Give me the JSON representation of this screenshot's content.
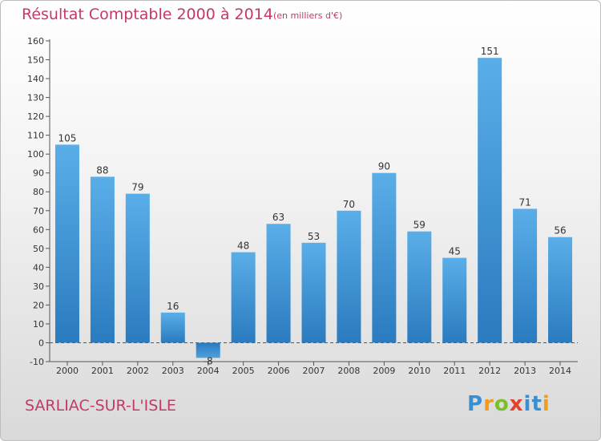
{
  "header": {
    "title": "Résultat Comptable 2000 à 2014",
    "subtitle": "(en milliers d'€)"
  },
  "footer": {
    "location": "SARLIAC-SUR-L'ISLE",
    "logo_text": "Proxiti"
  },
  "colors": {
    "accent_text": "#c5386b",
    "bar_positive_top": "#5aaee8",
    "bar_positive_bottom": "#2a7bbf",
    "bar_negative": "#2a7bbf"
  },
  "chart_data": {
    "type": "bar",
    "title": "Résultat Comptable 2000 à 2014",
    "subtitle": "(en milliers d'€)",
    "categories": [
      "2000",
      "2001",
      "2002",
      "2003",
      "2004",
      "2005",
      "2006",
      "2007",
      "2008",
      "2009",
      "2010",
      "2011",
      "2012",
      "2013",
      "2014"
    ],
    "values": [
      105,
      88,
      79,
      16,
      -8,
      48,
      63,
      53,
      70,
      90,
      59,
      45,
      151,
      71,
      56
    ],
    "data_labels": [
      "105",
      "88",
      "79",
      "16",
      "-8",
      "48",
      "63",
      "53",
      "70",
      "90",
      "59",
      "45",
      "151",
      "71",
      "56"
    ],
    "ylim": [
      -10,
      160
    ],
    "yticks": [
      -10,
      0,
      10,
      20,
      30,
      40,
      50,
      60,
      70,
      80,
      90,
      100,
      110,
      120,
      130,
      140,
      150,
      160
    ],
    "xlabel": "",
    "ylabel": "",
    "grid": false,
    "legend": "none"
  }
}
